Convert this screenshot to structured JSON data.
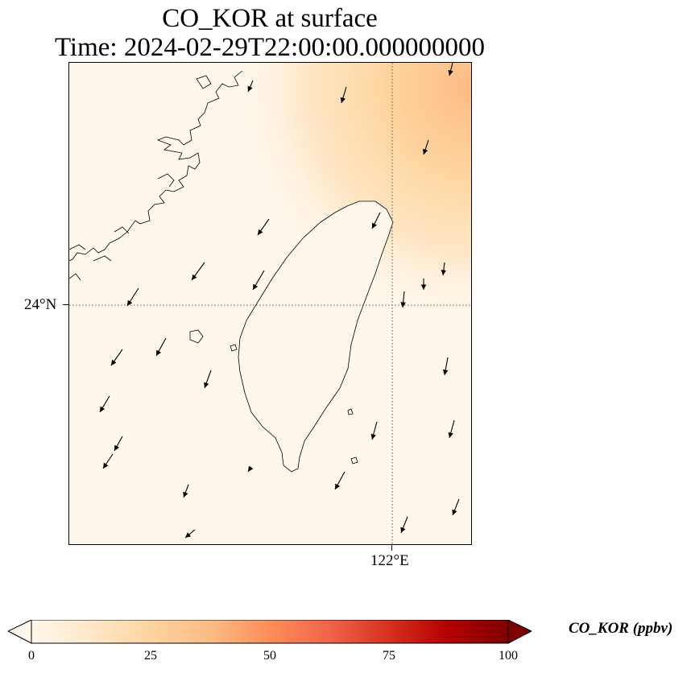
{
  "title": {
    "line1": "CO_KOR at surface",
    "line2": "Time: 2024-02-29T22:00:00.000000000"
  },
  "axes": {
    "lat_label": "24°N",
    "lon_label": "122°E"
  },
  "colorbar": {
    "label": "CO_KOR (ppbv)",
    "colormap": "OrRd",
    "ticks": [
      "0",
      "25",
      "50",
      "75",
      "100"
    ],
    "tick_values": [
      0,
      25,
      50,
      75,
      100
    ],
    "extend": "both",
    "colors": [
      "#fff7ec",
      "#fee8c8",
      "#fdd49e",
      "#fdbb84",
      "#fc8d59",
      "#ef6548",
      "#d7301f",
      "#b30000",
      "#7f0000"
    ]
  },
  "map": {
    "gridlines": "dotted",
    "high_concentration_region": "top-right",
    "wind_vectors": "black arrows"
  }
}
